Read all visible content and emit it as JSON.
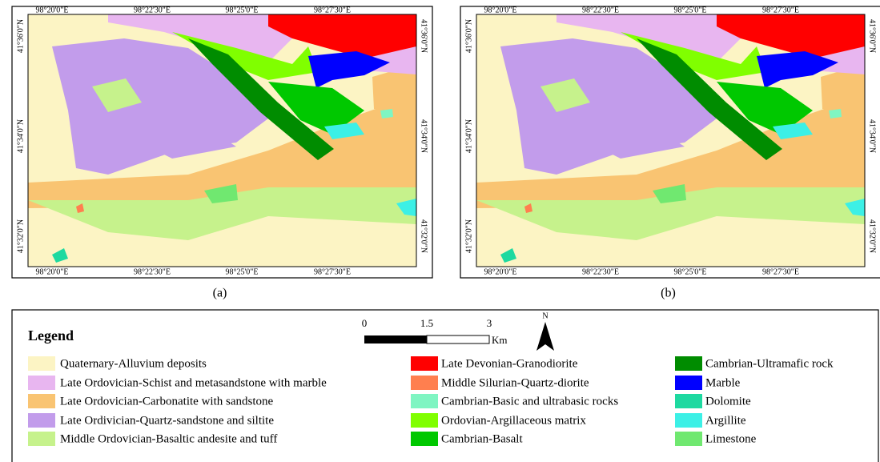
{
  "panels": [
    {
      "caption": "(a)",
      "top_labels": [
        "98°20'0\"E",
        "98°22'30\"E",
        "98°25'0\"E",
        "98°27'30\"E"
      ],
      "bottom_labels": [
        "98°20'0\"E",
        "98°22'30\"E",
        "98°25'0\"E",
        "98°27'30\"E"
      ],
      "left_labels": [
        "41°36'0\"N",
        "41°34'0\"N",
        "41°32'0\"N"
      ],
      "right_labels": [
        "41°36'0\"N",
        "41°34'0\"N",
        "41°32'0\"N"
      ]
    },
    {
      "caption": "(b)",
      "top_labels": [
        "98°20'0\"E",
        "98°22'30\"E",
        "98°25'0\"E",
        "98°27'30\"E"
      ],
      "bottom_labels": [
        "98°20'0\"E",
        "98°22'30\"E",
        "98°25'0\"E",
        "98°27'30\"E"
      ],
      "left_labels": [
        "41°36'0\"N",
        "41°34'0\"N",
        "41°32'0\"N"
      ],
      "right_labels": [
        "41°36'0\"N",
        "41°34'0\"N",
        "41°32'0\"N"
      ]
    }
  ],
  "legend": {
    "title": "Legend",
    "scale": {
      "ticks": [
        "0",
        "1.5",
        "3"
      ],
      "unit": "Km"
    },
    "north": "N",
    "items": [
      {
        "label": "Quaternary-Alluvium deposits",
        "color": "#fcf4c4"
      },
      {
        "label": "Late Ordovician-Schist and metasandstone with marble",
        "color": "#e8b6f0"
      },
      {
        "label": "Late Ordovician-Carbonatite with sandstone",
        "color": "#f9c472"
      },
      {
        "label": "Late Ordivician-Quartz-sandstone and siltite",
        "color": "#c29ceb"
      },
      {
        "label": "Middle Ordovician-Basaltic andesite and tuff",
        "color": "#c6f28c"
      },
      {
        "label": "Late Devonian-Granodiorite",
        "color": "#ff0000"
      },
      {
        "label": "Middle Silurian-Quartz-diorite",
        "color": "#ff7f4f"
      },
      {
        "label": "Cambrian-Basic and ultrabasic rocks",
        "color": "#7ff5c2"
      },
      {
        "label": "Ordovian-Argillaceous matrix",
        "color": "#80ff00"
      },
      {
        "label": "Cambrian-Basalt",
        "color": "#00c800"
      },
      {
        "label": "Cambrian-Ultramafic rock",
        "color": "#008c00"
      },
      {
        "label": "Marble",
        "color": "#0000ff"
      },
      {
        "label": "Dolomite",
        "color": "#1ed9a0"
      },
      {
        "label": "Argillite",
        "color": "#3cf0e6"
      },
      {
        "label": "Limestone",
        "color": "#70e870"
      }
    ]
  }
}
